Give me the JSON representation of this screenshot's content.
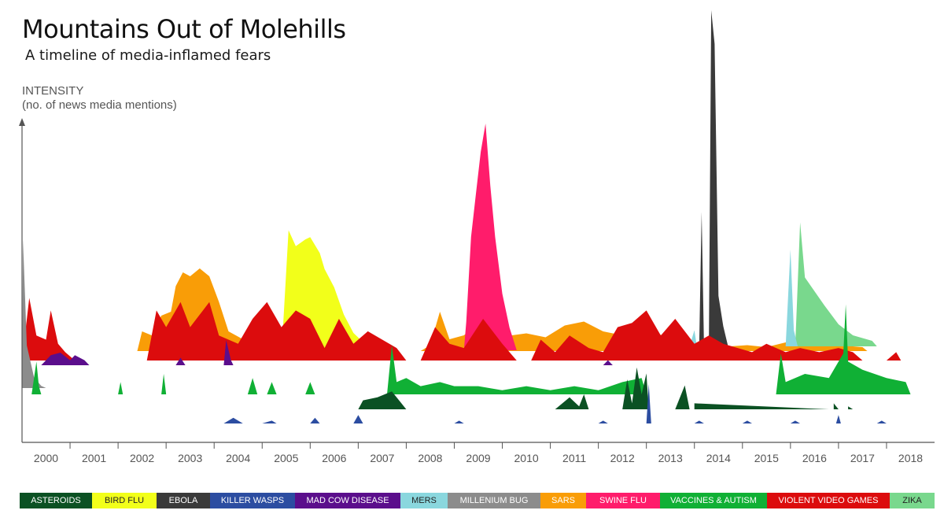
{
  "chart_data": {
    "type": "area",
    "title": "Mountains Out of Molehills",
    "subtitle": "A timeline of media-inflamed fears",
    "ylabel": "INTENSITY",
    "ylabel_sub": "(no. of news media mentions)",
    "xlabel": "",
    "years": [
      "2000",
      "2001",
      "2002",
      "2003",
      "2004",
      "2005",
      "2006",
      "2007",
      "2008",
      "2009",
      "2010",
      "2011",
      "2012",
      "2013",
      "2014",
      "2015",
      "2016",
      "2017",
      "2018"
    ],
    "xlim": [
      2000,
      2019
    ],
    "ylim": [
      0,
      100
    ],
    "grid": false,
    "legend_position": "bottom",
    "series": [
      {
        "name": "ASTEROIDS",
        "color": "#0b5123",
        "points": [
          [
            2007.0,
            0
          ],
          [
            2007.1,
            3
          ],
          [
            2007.4,
            4
          ],
          [
            2007.7,
            6
          ],
          [
            2007.9,
            2
          ],
          [
            2008.0,
            0
          ],
          [
            2011.1,
            0
          ],
          [
            2011.4,
            4
          ],
          [
            2011.6,
            1
          ],
          [
            2011.7,
            5
          ],
          [
            2011.8,
            0
          ],
          [
            2012.5,
            0
          ],
          [
            2012.6,
            10
          ],
          [
            2012.7,
            2
          ],
          [
            2012.8,
            14
          ],
          [
            2012.9,
            5
          ],
          [
            2013.0,
            12
          ],
          [
            2013.05,
            0
          ],
          [
            2013.6,
            0
          ],
          [
            2013.8,
            8
          ],
          [
            2013.9,
            0
          ],
          [
            2014.0,
            2
          ],
          [
            2016.8,
            0
          ],
          [
            2016.9,
            2
          ],
          [
            2017.0,
            0
          ],
          [
            2017.2,
            1
          ],
          [
            2017.3,
            0
          ]
        ]
      },
      {
        "name": "BIRD FLU",
        "color": "#f2ff1a",
        "points": [
          [
            2005.4,
            0
          ],
          [
            2005.55,
            55
          ],
          [
            2005.7,
            48
          ],
          [
            2005.9,
            51
          ],
          [
            2006.0,
            52
          ],
          [
            2006.2,
            45
          ],
          [
            2006.3,
            38
          ],
          [
            2006.5,
            30
          ],
          [
            2006.7,
            18
          ],
          [
            2006.9,
            10
          ],
          [
            2007.2,
            4
          ],
          [
            2007.5,
            0
          ]
        ]
      },
      {
        "name": "EBOLA",
        "color": "#3a3a3a",
        "points": [
          [
            2014.1,
            0
          ],
          [
            2014.15,
            40
          ],
          [
            2014.2,
            0
          ],
          [
            2014.3,
            0
          ],
          [
            2014.35,
            100
          ],
          [
            2014.42,
            90
          ],
          [
            2014.5,
            15
          ],
          [
            2014.6,
            6
          ],
          [
            2014.7,
            0
          ]
        ]
      },
      {
        "name": "KILLER WASPS",
        "color": "#2c4da1",
        "points": [
          [
            2004.2,
            0
          ],
          [
            2004.4,
            2
          ],
          [
            2004.6,
            0
          ],
          [
            2005.0,
            0
          ],
          [
            2005.2,
            1
          ],
          [
            2005.3,
            0
          ],
          [
            2006.0,
            0
          ],
          [
            2006.1,
            2
          ],
          [
            2006.2,
            0
          ],
          [
            2006.9,
            0
          ],
          [
            2007.0,
            3
          ],
          [
            2007.1,
            0
          ],
          [
            2009.0,
            0
          ],
          [
            2009.1,
            1
          ],
          [
            2009.2,
            0
          ],
          [
            2012.0,
            0
          ],
          [
            2012.1,
            1
          ],
          [
            2012.2,
            0
          ],
          [
            2013.0,
            0
          ],
          [
            2013.05,
            14
          ],
          [
            2013.1,
            0
          ],
          [
            2014.0,
            0
          ],
          [
            2014.1,
            1
          ],
          [
            2014.2,
            0
          ],
          [
            2015.0,
            0
          ],
          [
            2015.1,
            1
          ],
          [
            2015.2,
            0
          ],
          [
            2016.0,
            0
          ],
          [
            2016.1,
            1
          ],
          [
            2016.2,
            0
          ],
          [
            2016.95,
            0
          ],
          [
            2017.0,
            3
          ],
          [
            2017.05,
            0
          ],
          [
            2017.8,
            0
          ],
          [
            2017.9,
            1
          ],
          [
            2018.0,
            0
          ]
        ]
      },
      {
        "name": "MAD COW DISEASE",
        "color": "#5b0e8c",
        "points": [
          [
            2000.4,
            0
          ],
          [
            2000.5,
            2
          ],
          [
            2000.6,
            4
          ],
          [
            2000.8,
            5
          ],
          [
            2001.0,
            2
          ],
          [
            2001.1,
            4
          ],
          [
            2001.3,
            2
          ],
          [
            2001.4,
            0
          ],
          [
            2003.2,
            0
          ],
          [
            2003.3,
            3
          ],
          [
            2003.4,
            0
          ],
          [
            2004.2,
            0
          ],
          [
            2004.25,
            10
          ],
          [
            2004.35,
            2
          ],
          [
            2004.4,
            0
          ],
          [
            2012.1,
            0
          ],
          [
            2012.2,
            2
          ],
          [
            2012.3,
            0
          ]
        ]
      },
      {
        "name": "MERS",
        "color": "#8ad7de",
        "points": [
          [
            2013.9,
            0
          ],
          [
            2014.0,
            5
          ],
          [
            2014.05,
            0
          ],
          [
            2015.9,
            0
          ],
          [
            2016.0,
            30
          ],
          [
            2016.07,
            5
          ],
          [
            2016.15,
            0
          ]
        ]
      },
      {
        "name": "MILLENIUM BUG",
        "color": "#8c8c8c",
        "points": [
          [
            2000.0,
            0
          ],
          [
            2000.02,
            70
          ],
          [
            2000.1,
            20
          ],
          [
            2000.25,
            5
          ],
          [
            2000.4,
            1
          ],
          [
            2000.5,
            0
          ]
        ]
      },
      {
        "name": "SARS",
        "color": "#f99d07",
        "points": [
          [
            2002.4,
            0
          ],
          [
            2002.5,
            10
          ],
          [
            2002.7,
            8
          ],
          [
            2002.9,
            18
          ],
          [
            2003.1,
            20
          ],
          [
            2003.2,
            33
          ],
          [
            2003.35,
            40
          ],
          [
            2003.5,
            38
          ],
          [
            2003.7,
            42
          ],
          [
            2003.9,
            38
          ],
          [
            2004.1,
            25
          ],
          [
            2004.3,
            10
          ],
          [
            2004.6,
            6
          ],
          [
            2005.1,
            4
          ],
          [
            2005.4,
            2
          ],
          [
            2005.8,
            0
          ],
          [
            2008.3,
            0
          ],
          [
            2008.5,
            3
          ],
          [
            2008.7,
            20
          ],
          [
            2008.9,
            6
          ],
          [
            2009.2,
            8
          ],
          [
            2009.4,
            12
          ],
          [
            2009.7,
            15
          ],
          [
            2009.9,
            10
          ],
          [
            2010.2,
            8
          ],
          [
            2010.5,
            9
          ],
          [
            2010.9,
            7
          ],
          [
            2011.3,
            13
          ],
          [
            2011.7,
            15
          ],
          [
            2012.1,
            10
          ],
          [
            2012.5,
            8
          ],
          [
            2012.9,
            11
          ],
          [
            2013.2,
            9
          ],
          [
            2013.6,
            6
          ],
          [
            2014.0,
            3
          ],
          [
            2014.5,
            2
          ],
          [
            2015.1,
            3
          ],
          [
            2015.5,
            2
          ],
          [
            2016.0,
            5
          ],
          [
            2016.5,
            4
          ],
          [
            2017.0,
            3
          ],
          [
            2017.5,
            2
          ],
          [
            2017.6,
            0
          ]
        ]
      },
      {
        "name": "SWINE FLU",
        "color": "#ff1c6b",
        "points": [
          [
            2009.2,
            0
          ],
          [
            2009.25,
            10
          ],
          [
            2009.35,
            40
          ],
          [
            2009.45,
            55
          ],
          [
            2009.55,
            70
          ],
          [
            2009.65,
            80
          ],
          [
            2009.75,
            58
          ],
          [
            2009.85,
            40
          ],
          [
            2010.0,
            20
          ],
          [
            2010.15,
            8
          ],
          [
            2010.3,
            0
          ]
        ]
      },
      {
        "name": "VACCINES & AUTISM",
        "color": "#10b035",
        "points": [
          [
            2000.2,
            0
          ],
          [
            2000.3,
            8
          ],
          [
            2000.35,
            2
          ],
          [
            2000.4,
            0
          ],
          [
            2002.0,
            0
          ],
          [
            2002.05,
            3
          ],
          [
            2002.1,
            0
          ],
          [
            2002.9,
            0
          ],
          [
            2002.95,
            5
          ],
          [
            2003.0,
            0
          ],
          [
            2004.7,
            0
          ],
          [
            2004.8,
            4
          ],
          [
            2004.9,
            0
          ],
          [
            2005.1,
            0
          ],
          [
            2005.2,
            3
          ],
          [
            2005.3,
            0
          ],
          [
            2005.9,
            0
          ],
          [
            2006.0,
            3
          ],
          [
            2006.1,
            0
          ],
          [
            2007.6,
            0
          ],
          [
            2007.7,
            12
          ],
          [
            2007.8,
            3
          ],
          [
            2008.0,
            4
          ],
          [
            2008.3,
            2
          ],
          [
            2008.7,
            3
          ],
          [
            2009.0,
            2
          ],
          [
            2009.5,
            2
          ],
          [
            2010.0,
            1
          ],
          [
            2010.5,
            2
          ],
          [
            2011.0,
            1
          ],
          [
            2011.5,
            2
          ],
          [
            2012.0,
            1
          ],
          [
            2012.5,
            3
          ],
          [
            2012.9,
            4
          ],
          [
            2013.0,
            0
          ],
          [
            2015.7,
            0
          ],
          [
            2015.8,
            10
          ],
          [
            2015.9,
            3
          ],
          [
            2016.3,
            5
          ],
          [
            2016.8,
            4
          ],
          [
            2017.1,
            10
          ],
          [
            2017.15,
            22
          ],
          [
            2017.2,
            8
          ],
          [
            2017.5,
            6
          ],
          [
            2018.0,
            4
          ],
          [
            2018.4,
            3
          ],
          [
            2018.5,
            0
          ]
        ]
      },
      {
        "name": "VIOLENT VIDEO GAMES",
        "color": "#dc0c0d",
        "points": [
          [
            2000.0,
            0
          ],
          [
            2000.15,
            15
          ],
          [
            2000.3,
            6
          ],
          [
            2000.5,
            5
          ],
          [
            2000.6,
            12
          ],
          [
            2000.75,
            4
          ],
          [
            2000.9,
            2
          ],
          [
            2001.1,
            0
          ],
          [
            2002.6,
            0
          ],
          [
            2002.8,
            12
          ],
          [
            2003.0,
            8
          ],
          [
            2003.3,
            14
          ],
          [
            2003.5,
            8
          ],
          [
            2003.9,
            14
          ],
          [
            2004.1,
            6
          ],
          [
            2004.5,
            4
          ],
          [
            2004.8,
            10
          ],
          [
            2005.1,
            14
          ],
          [
            2005.4,
            8
          ],
          [
            2005.7,
            12
          ],
          [
            2006.0,
            10
          ],
          [
            2006.3,
            3
          ],
          [
            2006.6,
            10
          ],
          [
            2006.9,
            4
          ],
          [
            2007.2,
            7
          ],
          [
            2007.5,
            5
          ],
          [
            2007.8,
            3
          ],
          [
            2008.0,
            0
          ],
          [
            2008.3,
            0
          ],
          [
            2008.6,
            8
          ],
          [
            2008.9,
            4
          ],
          [
            2009.2,
            3
          ],
          [
            2009.6,
            10
          ],
          [
            2010.0,
            4
          ],
          [
            2010.3,
            0
          ],
          [
            2010.6,
            0
          ],
          [
            2010.8,
            5
          ],
          [
            2011.1,
            2
          ],
          [
            2011.4,
            6
          ],
          [
            2011.8,
            3
          ],
          [
            2012.1,
            2
          ],
          [
            2012.4,
            8
          ],
          [
            2012.7,
            9
          ],
          [
            2013.0,
            12
          ],
          [
            2013.3,
            6
          ],
          [
            2013.6,
            10
          ],
          [
            2014.0,
            4
          ],
          [
            2014.3,
            6
          ],
          [
            2014.6,
            4
          ],
          [
            2014.9,
            3
          ],
          [
            2015.2,
            2
          ],
          [
            2015.5,
            4
          ],
          [
            2015.9,
            2
          ],
          [
            2016.2,
            3
          ],
          [
            2016.6,
            2
          ],
          [
            2017.0,
            3
          ],
          [
            2017.3,
            2
          ],
          [
            2017.5,
            0
          ],
          [
            2018.0,
            0
          ],
          [
            2018.2,
            2
          ],
          [
            2018.3,
            0
          ]
        ]
      },
      {
        "name": "ZIKA",
        "color": "#79d88d",
        "points": [
          [
            2016.1,
            0
          ],
          [
            2016.2,
            45
          ],
          [
            2016.3,
            25
          ],
          [
            2016.5,
            20
          ],
          [
            2016.7,
            15
          ],
          [
            2017.0,
            8
          ],
          [
            2017.3,
            4
          ],
          [
            2017.7,
            2
          ],
          [
            2017.8,
            0
          ]
        ]
      }
    ]
  }
}
